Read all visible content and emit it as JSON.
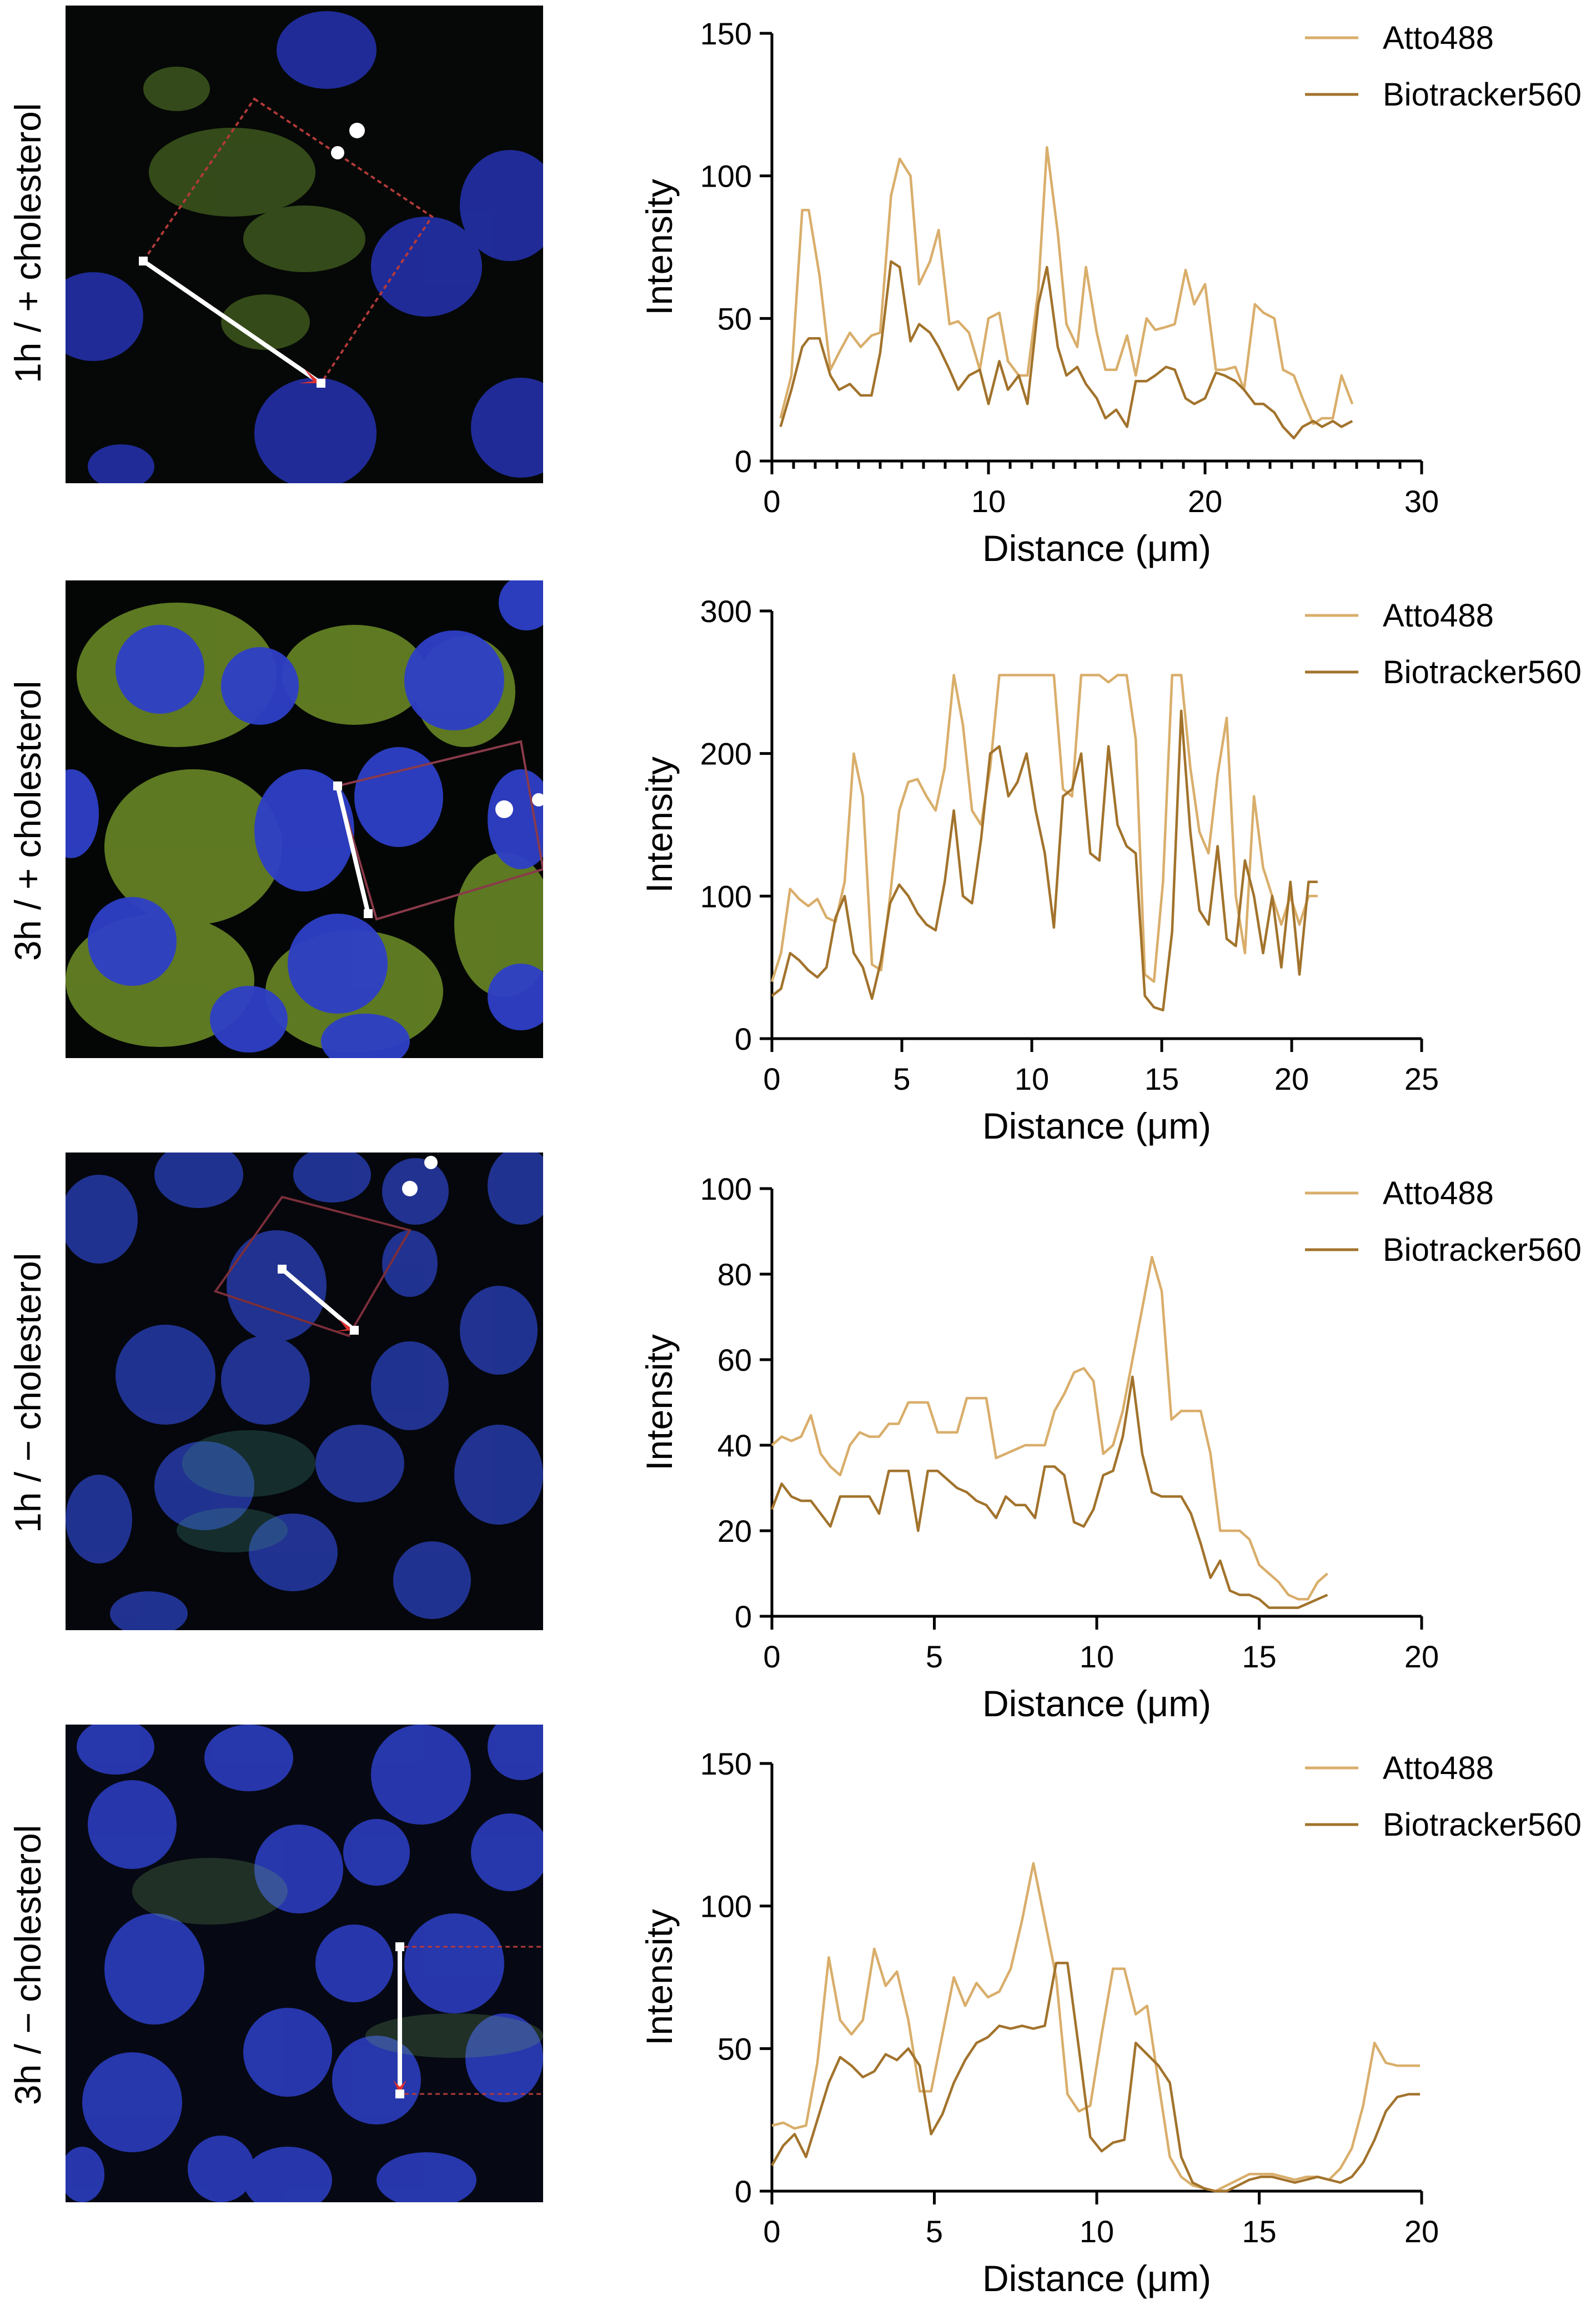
{
  "colors": {
    "atto488": "#D9AE6B",
    "biotracker560": "#A2732C",
    "axis": "#000000",
    "nucleus": "#2E3FC7",
    "green_signal": "#9BD33A",
    "line_marker": "#FFFFFF",
    "roi_box": "#B33A3A"
  },
  "panels": [
    {
      "label": "1h / + cholesterol"
    },
    {
      "label": "3h / + cholesterol"
    },
    {
      "label": "1h / − cholesterol"
    },
    {
      "label": "3h / − cholesterol"
    }
  ],
  "chart_data": [
    {
      "type": "line",
      "title": "",
      "xlabel": "Distance (μm)",
      "ylabel": "Intensity",
      "xlim": [
        0,
        30
      ],
      "ylim": [
        0,
        150
      ],
      "xticks": [
        0,
        10,
        20,
        30
      ],
      "yticks": [
        0,
        50,
        100,
        150
      ],
      "minor_xticks": true,
      "legend_position": "top-right",
      "series": [
        {
          "name": "Atto488",
          "color": "#D9AE6B",
          "x": [
            0.4,
            0.9,
            1.4,
            1.7,
            2.2,
            2.7,
            3.1,
            3.6,
            4.1,
            4.6,
            5.0,
            5.5,
            5.9,
            6.4,
            6.8,
            7.3,
            7.7,
            8.2,
            8.6,
            9.1,
            9.6,
            10.0,
            10.5,
            10.9,
            11.4,
            11.8,
            12.3,
            12.7,
            13.2,
            13.6,
            14.1,
            14.5,
            15.0,
            15.4,
            15.9,
            16.4,
            16.8,
            17.3,
            17.7,
            18.2,
            18.6,
            19.1,
            19.5,
            20.0,
            20.5,
            20.9,
            21.4,
            21.8,
            22.3,
            22.7,
            23.2,
            23.6,
            24.1,
            24.5,
            25.0,
            25.4,
            25.9,
            26.3,
            26.8
          ],
          "y": [
            15,
            30,
            88,
            88,
            65,
            32,
            38,
            45,
            40,
            44,
            45,
            93,
            106,
            100,
            62,
            70,
            81,
            48,
            49,
            45,
            32,
            50,
            52,
            35,
            30,
            30,
            60,
            110,
            80,
            48,
            40,
            68,
            45,
            32,
            32,
            44,
            30,
            50,
            46,
            47,
            48,
            67,
            55,
            62,
            32,
            32,
            33,
            25,
            55,
            52,
            50,
            32,
            30,
            22,
            13,
            15,
            15,
            30,
            20
          ]
        },
        {
          "name": "Biotracker560",
          "color": "#A2732C",
          "x": [
            0.4,
            0.9,
            1.4,
            1.7,
            2.2,
            2.7,
            3.1,
            3.6,
            4.1,
            4.6,
            5.0,
            5.5,
            5.9,
            6.4,
            6.8,
            7.3,
            7.7,
            8.2,
            8.6,
            9.1,
            9.6,
            10.0,
            10.5,
            10.9,
            11.4,
            11.8,
            12.3,
            12.7,
            13.2,
            13.6,
            14.1,
            14.5,
            15.0,
            15.4,
            15.9,
            16.4,
            16.8,
            17.3,
            17.7,
            18.2,
            18.6,
            19.1,
            19.5,
            20.0,
            20.5,
            20.9,
            21.4,
            21.8,
            22.3,
            22.7,
            23.2,
            23.6,
            24.1,
            24.5,
            25.0,
            25.4,
            25.9,
            26.3,
            26.8
          ],
          "y": [
            12,
            25,
            40,
            43,
            43,
            30,
            25,
            27,
            23,
            23,
            38,
            70,
            68,
            42,
            48,
            45,
            40,
            32,
            25,
            30,
            32,
            20,
            35,
            25,
            30,
            20,
            55,
            68,
            40,
            30,
            33,
            27,
            22,
            15,
            18,
            12,
            28,
            28,
            30,
            33,
            32,
            22,
            20,
            22,
            31,
            30,
            28,
            25,
            20,
            20,
            17,
            12,
            8,
            12,
            14,
            12,
            14,
            12,
            14
          ]
        }
      ]
    },
    {
      "type": "line",
      "title": "",
      "xlabel": "Distance (μm)",
      "ylabel": "Intensity",
      "xlim": [
        0,
        25
      ],
      "ylim": [
        0,
        300
      ],
      "xticks": [
        0,
        5,
        10,
        15,
        20,
        25
      ],
      "yticks": [
        0,
        100,
        200,
        300
      ],
      "minor_xticks": false,
      "legend_position": "top-right",
      "series": [
        {
          "name": "Atto488",
          "color": "#D9AE6B",
          "x": [
            0,
            0.35,
            0.7,
            1.05,
            1.4,
            1.75,
            2.1,
            2.45,
            2.8,
            3.15,
            3.5,
            3.85,
            4.2,
            4.55,
            4.9,
            5.25,
            5.6,
            5.95,
            6.3,
            6.65,
            7.0,
            7.35,
            7.7,
            8.05,
            8.4,
            8.75,
            9.1,
            9.45,
            9.8,
            10.15,
            10.5,
            10.85,
            11.2,
            11.55,
            11.9,
            12.25,
            12.6,
            12.95,
            13.3,
            13.65,
            14.0,
            14.35,
            14.7,
            15.05,
            15.4,
            15.75,
            16.1,
            16.45,
            16.8,
            17.15,
            17.5,
            17.85,
            18.2,
            18.55,
            18.9,
            19.25,
            19.6,
            19.95,
            20.3,
            20.65,
            21.0
          ],
          "y": [
            40,
            60,
            105,
            98,
            93,
            98,
            85,
            82,
            110,
            200,
            170,
            52,
            48,
            100,
            160,
            180,
            182,
            170,
            160,
            190,
            255,
            220,
            160,
            150,
            190,
            255,
            255,
            255,
            255,
            255,
            255,
            255,
            175,
            170,
            255,
            255,
            255,
            250,
            255,
            255,
            210,
            45,
            40,
            110,
            255,
            255,
            190,
            145,
            130,
            185,
            225,
            100,
            60,
            170,
            120,
            100,
            80,
            100,
            80,
            100,
            100
          ]
        },
        {
          "name": "Biotracker560",
          "color": "#A2732C",
          "x": [
            0,
            0.35,
            0.7,
            1.05,
            1.4,
            1.75,
            2.1,
            2.45,
            2.8,
            3.15,
            3.5,
            3.85,
            4.2,
            4.55,
            4.9,
            5.25,
            5.6,
            5.95,
            6.3,
            6.65,
            7.0,
            7.35,
            7.7,
            8.05,
            8.4,
            8.75,
            9.1,
            9.45,
            9.8,
            10.15,
            10.5,
            10.85,
            11.2,
            11.55,
            11.9,
            12.25,
            12.6,
            12.95,
            13.3,
            13.65,
            14.0,
            14.35,
            14.7,
            15.05,
            15.4,
            15.75,
            16.1,
            16.45,
            16.8,
            17.15,
            17.5,
            17.85,
            18.2,
            18.55,
            18.9,
            19.25,
            19.6,
            19.95,
            20.3,
            20.65,
            21.0
          ],
          "y": [
            30,
            35,
            60,
            55,
            48,
            43,
            50,
            85,
            100,
            60,
            50,
            28,
            55,
            95,
            108,
            100,
            88,
            80,
            76,
            110,
            160,
            100,
            95,
            140,
            200,
            205,
            170,
            180,
            200,
            160,
            130,
            78,
            170,
            175,
            200,
            130,
            125,
            205,
            150,
            135,
            130,
            30,
            22,
            20,
            75,
            230,
            145,
            90,
            80,
            135,
            70,
            65,
            125,
            100,
            60,
            100,
            50,
            110,
            45,
            110,
            110
          ]
        }
      ]
    },
    {
      "type": "line",
      "title": "",
      "xlabel": "Distance (μm)",
      "ylabel": "Intensity",
      "xlim": [
        0,
        20
      ],
      "ylim": [
        0,
        100
      ],
      "xticks": [
        0,
        5,
        10,
        15,
        20
      ],
      "yticks": [
        0,
        20,
        40,
        60,
        80,
        100
      ],
      "minor_xticks": false,
      "legend_position": "top-right",
      "series": [
        {
          "name": "Atto488",
          "color": "#D9AE6B",
          "x": [
            0,
            0.3,
            0.6,
            0.9,
            1.2,
            1.5,
            1.8,
            2.1,
            2.4,
            2.7,
            3.0,
            3.3,
            3.6,
            3.9,
            4.2,
            4.5,
            4.8,
            5.1,
            5.4,
            5.7,
            6.0,
            6.3,
            6.6,
            6.9,
            7.2,
            7.5,
            7.8,
            8.1,
            8.4,
            8.7,
            9.0,
            9.3,
            9.6,
            9.9,
            10.2,
            10.5,
            10.8,
            11.1,
            11.4,
            11.7,
            12.0,
            12.3,
            12.6,
            12.9,
            13.2,
            13.5,
            13.8,
            14.1,
            14.4,
            14.7,
            15.0,
            15.3,
            15.6,
            15.9,
            16.2,
            16.5,
            16.8,
            17.1
          ],
          "y": [
            40,
            42,
            41,
            42,
            47,
            38,
            35,
            33,
            40,
            43,
            42,
            42,
            45,
            45,
            50,
            50,
            50,
            43,
            43,
            43,
            51,
            51,
            51,
            37,
            38,
            39,
            40,
            40,
            40,
            48,
            52,
            57,
            58,
            55,
            38,
            40,
            48,
            60,
            72,
            84,
            76,
            46,
            48,
            48,
            48,
            38,
            20,
            20,
            20,
            18,
            12,
            10,
            8,
            5,
            4,
            4,
            8,
            10
          ]
        },
        {
          "name": "Biotracker560",
          "color": "#A2732C",
          "x": [
            0,
            0.3,
            0.6,
            0.9,
            1.2,
            1.5,
            1.8,
            2.1,
            2.4,
            2.7,
            3.0,
            3.3,
            3.6,
            3.9,
            4.2,
            4.5,
            4.8,
            5.1,
            5.4,
            5.7,
            6.0,
            6.3,
            6.6,
            6.9,
            7.2,
            7.5,
            7.8,
            8.1,
            8.4,
            8.7,
            9.0,
            9.3,
            9.6,
            9.9,
            10.2,
            10.5,
            10.8,
            11.1,
            11.4,
            11.7,
            12.0,
            12.3,
            12.6,
            12.9,
            13.2,
            13.5,
            13.8,
            14.1,
            14.4,
            14.7,
            15.0,
            15.3,
            15.6,
            15.9,
            16.2,
            16.5,
            16.8,
            17.1
          ],
          "y": [
            25,
            31,
            28,
            27,
            27,
            24,
            21,
            28,
            28,
            28,
            28,
            24,
            34,
            34,
            34,
            20,
            34,
            34,
            32,
            30,
            29,
            27,
            26,
            23,
            28,
            26,
            26,
            23,
            35,
            35,
            33,
            22,
            21,
            25,
            33,
            34,
            42,
            56,
            38,
            29,
            28,
            28,
            28,
            24,
            17,
            9,
            13,
            6,
            5,
            5,
            4,
            2,
            2,
            2,
            2,
            3,
            4,
            5
          ]
        }
      ]
    },
    {
      "type": "line",
      "title": "",
      "xlabel": "Distance (μm)",
      "ylabel": "Intensity",
      "xlim": [
        0,
        20
      ],
      "ylim": [
        0,
        150
      ],
      "xticks": [
        0,
        5,
        10,
        15,
        20
      ],
      "yticks": [
        0,
        50,
        100,
        150
      ],
      "minor_xticks": false,
      "legend_position": "top-right",
      "series": [
        {
          "name": "Atto488",
          "color": "#D9AE6B",
          "x": [
            0,
            0.35,
            0.7,
            1.05,
            1.4,
            1.75,
            2.1,
            2.45,
            2.8,
            3.15,
            3.5,
            3.85,
            4.2,
            4.55,
            4.9,
            5.25,
            5.6,
            5.95,
            6.3,
            6.65,
            7.0,
            7.35,
            7.7,
            8.05,
            8.4,
            8.75,
            9.1,
            9.45,
            9.8,
            10.15,
            10.5,
            10.85,
            11.2,
            11.55,
            11.9,
            12.25,
            12.6,
            12.95,
            13.3,
            13.65,
            14.0,
            14.35,
            14.7,
            15.05,
            15.4,
            15.75,
            16.1,
            16.45,
            16.8,
            17.15,
            17.5,
            17.85,
            18.2,
            18.55,
            18.9,
            19.25,
            19.6,
            19.95
          ],
          "y": [
            23,
            24,
            22,
            23,
            45,
            82,
            60,
            55,
            60,
            85,
            72,
            77,
            60,
            35,
            35,
            55,
            75,
            65,
            73,
            68,
            70,
            78,
            95,
            115,
            95,
            75,
            34,
            28,
            30,
            55,
            78,
            78,
            62,
            65,
            38,
            12,
            5,
            2,
            1,
            0,
            2,
            4,
            6,
            6,
            6,
            5,
            4,
            5,
            5,
            4,
            8,
            15,
            30,
            52,
            45,
            44,
            44,
            44
          ]
        },
        {
          "name": "Biotracker560",
          "color": "#A2732C",
          "x": [
            0,
            0.35,
            0.7,
            1.05,
            1.4,
            1.75,
            2.1,
            2.45,
            2.8,
            3.15,
            3.5,
            3.85,
            4.2,
            4.55,
            4.9,
            5.25,
            5.6,
            5.95,
            6.3,
            6.65,
            7.0,
            7.35,
            7.7,
            8.05,
            8.4,
            8.75,
            9.1,
            9.45,
            9.8,
            10.15,
            10.5,
            10.85,
            11.2,
            11.55,
            11.9,
            12.25,
            12.6,
            12.95,
            13.3,
            13.65,
            14.0,
            14.35,
            14.7,
            15.05,
            15.4,
            15.75,
            16.1,
            16.45,
            16.8,
            17.15,
            17.5,
            17.85,
            18.2,
            18.55,
            18.9,
            19.25,
            19.6,
            19.95
          ],
          "y": [
            9,
            16,
            20,
            12,
            25,
            38,
            47,
            44,
            40,
            42,
            48,
            46,
            50,
            44,
            20,
            27,
            38,
            46,
            52,
            54,
            58,
            57,
            58,
            57,
            58,
            80,
            80,
            50,
            19,
            14,
            17,
            18,
            52,
            48,
            44,
            38,
            12,
            3,
            1,
            0,
            0,
            2,
            4,
            5,
            5,
            4,
            3,
            4,
            5,
            4,
            3,
            5,
            10,
            18,
            28,
            33,
            34,
            34
          ]
        }
      ]
    }
  ]
}
